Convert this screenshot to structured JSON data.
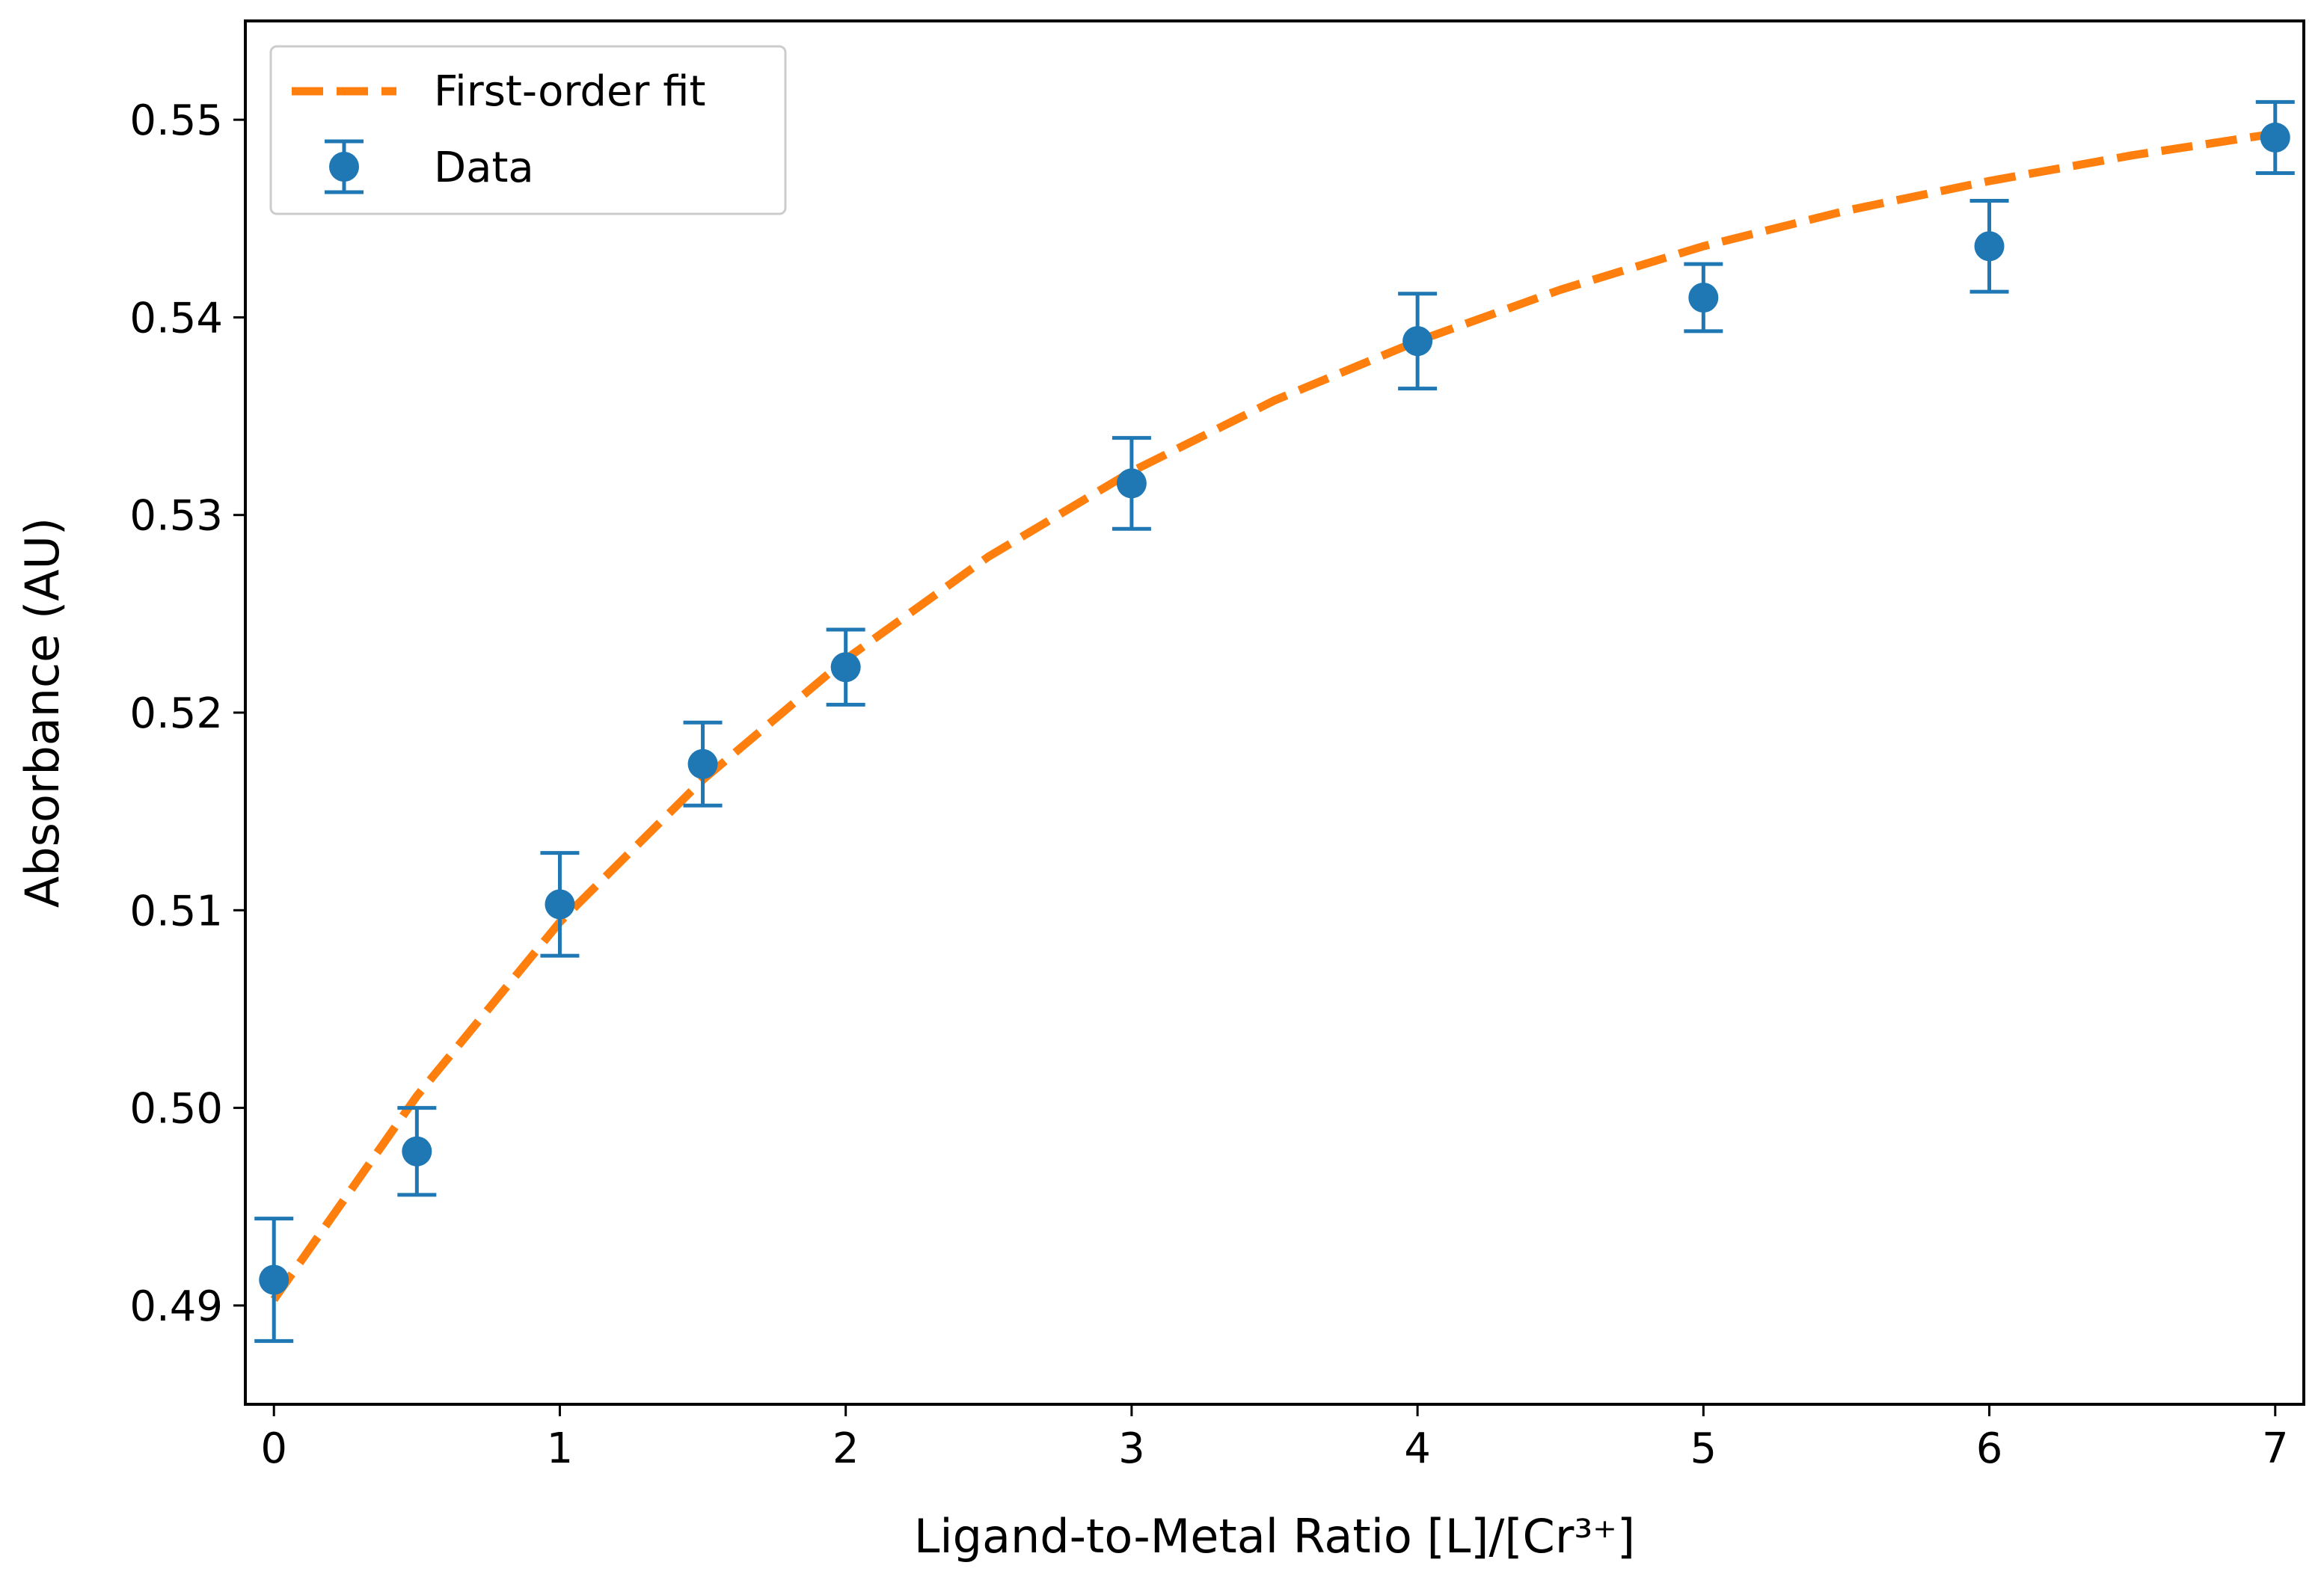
{
  "chart_data": {
    "type": "scatter",
    "xlabel": "Ligand-to-Metal Ratio [L]/[Cr³⁺]",
    "ylabel": "Absorbance (AU)",
    "xlim": [
      -0.1,
      7.1
    ],
    "ylim": [
      0.485,
      0.555
    ],
    "xticks": [
      0,
      1,
      2,
      3,
      4,
      5,
      6,
      7
    ],
    "xtick_labels": [
      "0",
      "1",
      "2",
      "3",
      "4",
      "5",
      "6",
      "7"
    ],
    "yticks": [
      0.49,
      0.5,
      0.51,
      0.52,
      0.53,
      0.54,
      0.55
    ],
    "ytick_labels": [
      "0.49",
      "0.50",
      "0.51",
      "0.52",
      "0.53",
      "0.54",
      "0.55"
    ],
    "grid": false,
    "legend_position": "top-left",
    "series": [
      {
        "name": "Data",
        "kind": "errorbar",
        "color": "#1f77b4",
        "x": [
          0,
          0.5,
          1,
          1.5,
          2,
          3,
          4,
          5,
          6,
          7
        ],
        "y": [
          0.4913,
          0.4978,
          0.5103,
          0.5174,
          0.5223,
          0.5316,
          0.5388,
          0.541,
          0.5436,
          0.5491
        ],
        "yerr": [
          0.0031,
          0.0022,
          0.0026,
          0.0021,
          0.0019,
          0.0023,
          0.0024,
          0.0017,
          0.0023,
          0.0018
        ]
      },
      {
        "name": "First-order fit",
        "kind": "line",
        "style": "dashed",
        "color": "#ff7f0e",
        "x": [
          0,
          0.5,
          1,
          1.5,
          2,
          2.5,
          3,
          3.5,
          4,
          4.5,
          5,
          5.5,
          6,
          6.5,
          7
        ],
        "y": [
          0.4903,
          0.5006,
          0.5094,
          0.5166,
          0.5227,
          0.5279,
          0.5322,
          0.5358,
          0.5388,
          0.5414,
          0.5436,
          0.5454,
          0.5469,
          0.5482,
          0.5493
        ]
      }
    ]
  }
}
